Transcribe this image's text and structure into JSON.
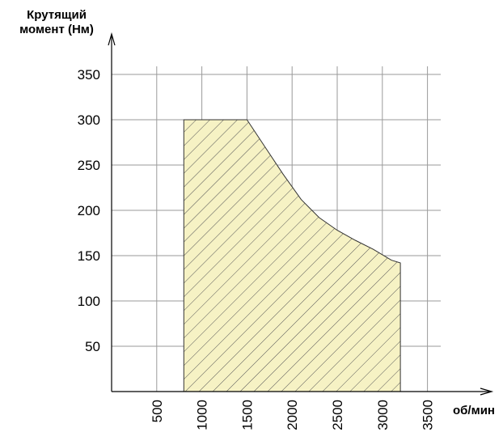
{
  "chart_data": {
    "type": "area",
    "title": "",
    "ylabel_line1": "Крутящий",
    "ylabel_line2": "момент (Нм)",
    "xlabel": "об/мин",
    "xlim": [
      0,
      3500
    ],
    "ylim": [
      0,
      350
    ],
    "xticks": [
      500,
      1000,
      1500,
      2000,
      2500,
      3000,
      3500
    ],
    "yticks": [
      50,
      100,
      150,
      200,
      250,
      300,
      350
    ],
    "grid": true,
    "fill_color": "#f6f2c4",
    "hatch_color": "#555555",
    "series": [
      {
        "x": [
          800,
          800,
          1500,
          1700,
          1900,
          2100,
          2300,
          2500,
          2700,
          2900,
          3100,
          3200,
          3200
        ],
        "y": [
          0,
          300,
          300,
          270,
          240,
          212,
          192,
          178,
          167,
          157,
          145,
          142,
          0
        ]
      }
    ]
  }
}
